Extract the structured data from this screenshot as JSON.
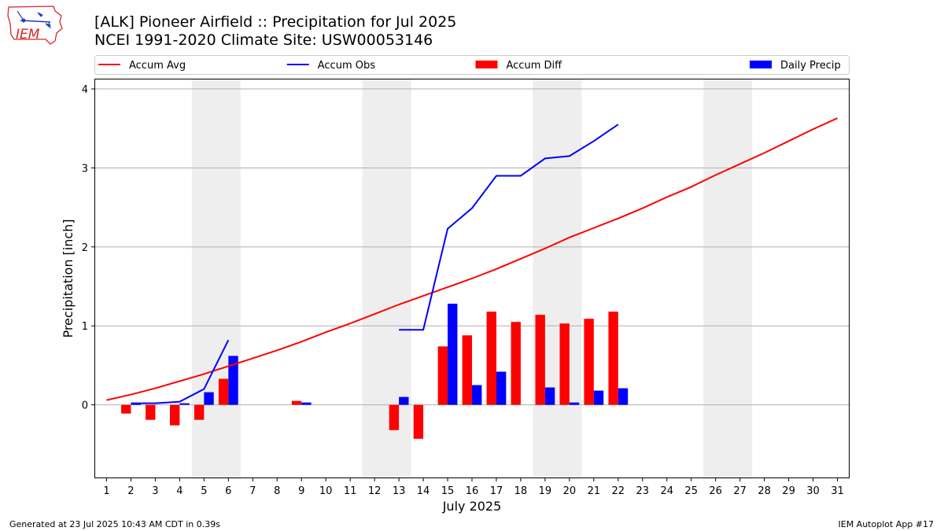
{
  "logo": {
    "text": "IEM",
    "colors": {
      "outline": "#d62728",
      "birds": "#1f3fbf",
      "text": "#d62728"
    }
  },
  "header": {
    "title": "[ALK] Pioneer Airfield :: Precipitation for Jul 2025",
    "subtitle": "NCEI 1991-2020 Climate Site: USW00053146"
  },
  "footer": {
    "left": "Generated at 23 Jul 2025 10:43 AM CDT in 0.39s",
    "right": "IEM Autoplot App #17"
  },
  "chart_data": {
    "type": "bar",
    "xlabel": "July 2025",
    "ylabel": "Precipitation [inch]",
    "xlim": [
      0.5,
      31.5
    ],
    "ylim": [
      -0.93,
      4.13
    ],
    "xticks": [
      1,
      2,
      3,
      4,
      5,
      6,
      7,
      8,
      9,
      10,
      11,
      12,
      13,
      14,
      15,
      16,
      17,
      18,
      19,
      20,
      21,
      22,
      23,
      24,
      25,
      26,
      27,
      28,
      29,
      30,
      31
    ],
    "yticks": [
      0,
      1,
      2,
      3,
      4
    ],
    "grid": "horizontal",
    "weekend_shading": [
      [
        4.5,
        6.5
      ],
      [
        11.5,
        13.5
      ],
      [
        18.5,
        20.5
      ],
      [
        25.5,
        27.5
      ]
    ],
    "legend": {
      "placement": "top, above plot",
      "entries": [
        {
          "label": "Accum Avg",
          "kind": "line",
          "color": "#ff0000"
        },
        {
          "label": "Accum Obs",
          "kind": "line",
          "color": "#0000ff"
        },
        {
          "label": "Accum Diff",
          "kind": "bar",
          "color": "#ff0000"
        },
        {
          "label": "Daily Precip",
          "kind": "bar",
          "color": "#0000ff"
        }
      ]
    },
    "series": [
      {
        "name": "Accum Avg",
        "kind": "line",
        "color": "#ff0000",
        "x": [
          1,
          2,
          3,
          4,
          5,
          6,
          7,
          8,
          9,
          10,
          11,
          12,
          13,
          14,
          15,
          16,
          17,
          18,
          19,
          20,
          21,
          22,
          23,
          24,
          25,
          26,
          27,
          28,
          29,
          30,
          31
        ],
        "values": [
          0.06,
          0.13,
          0.21,
          0.3,
          0.39,
          0.49,
          0.59,
          0.69,
          0.8,
          0.92,
          1.03,
          1.15,
          1.27,
          1.38,
          1.49,
          1.6,
          1.72,
          1.85,
          1.98,
          2.12,
          2.24,
          2.36,
          2.49,
          2.63,
          2.76,
          2.91,
          3.05,
          3.19,
          3.34,
          3.49,
          3.63
        ]
      },
      {
        "name": "Accum Obs",
        "kind": "line",
        "color": "#0000ff",
        "segments": [
          {
            "x": [
              2,
              3,
              4,
              5,
              6
            ],
            "values": [
              0.02,
              0.02,
              0.04,
              0.2,
              0.82
            ]
          },
          {
            "x": [
              13,
              14,
              15,
              16,
              17,
              18,
              19,
              20,
              21,
              22
            ],
            "values": [
              0.95,
              0.95,
              2.23,
              2.49,
              2.9,
              2.9,
              3.12,
              3.15,
              3.34,
              3.55
            ]
          }
        ]
      },
      {
        "name": "Accum Diff",
        "kind": "bar",
        "color": "#ff0000",
        "x": [
          2,
          3,
          4,
          5,
          6,
          9,
          13,
          14,
          15,
          16,
          17,
          18,
          19,
          20,
          21,
          22
        ],
        "values": [
          -0.11,
          -0.19,
          -0.26,
          -0.19,
          0.33,
          0.05,
          -0.32,
          -0.43,
          0.74,
          0.88,
          1.18,
          1.05,
          1.14,
          1.03,
          1.09,
          1.18
        ]
      },
      {
        "name": "Daily Precip",
        "kind": "bar",
        "color": "#0000ff",
        "x": [
          2,
          4,
          5,
          6,
          9,
          13,
          15,
          16,
          17,
          19,
          20,
          21,
          22
        ],
        "values": [
          0.02,
          0.02,
          0.16,
          0.62,
          0.03,
          0.1,
          1.28,
          0.25,
          0.42,
          0.22,
          0.03,
          0.18,
          0.21
        ]
      }
    ]
  }
}
